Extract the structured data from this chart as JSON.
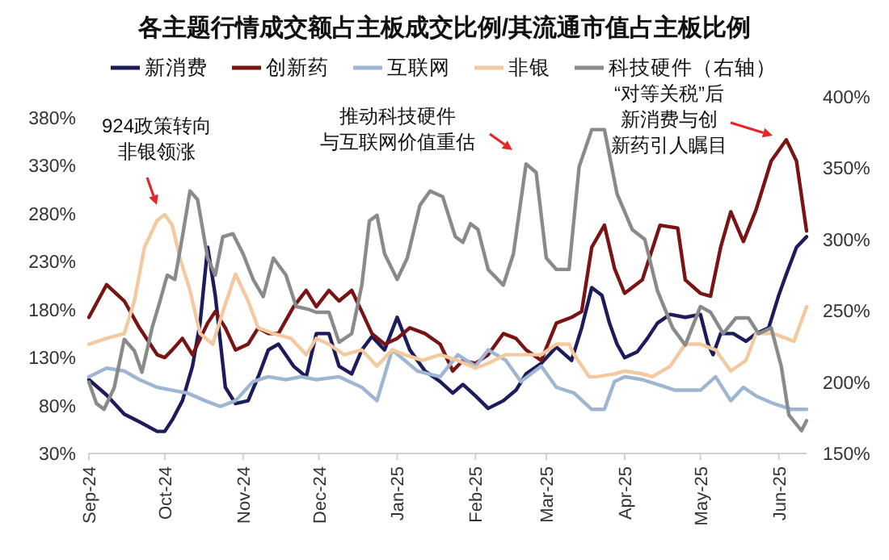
{
  "chart_data": {
    "type": "line",
    "title": "各主题行情成交额占主板成交比例/其流通市值占主板比例",
    "legend": "top",
    "xlim": [
      "2024-09-01",
      "2025-06-12"
    ],
    "xticks": [
      {
        "value": "2024-09-01",
        "label": "Sep-24"
      },
      {
        "value": "2024-10-01",
        "label": "Oct-24"
      },
      {
        "value": "2024-11-01",
        "label": "Nov-24"
      },
      {
        "value": "2024-12-01",
        "label": "Dec-24"
      },
      {
        "value": "2025-01-01",
        "label": "Jan-25"
      },
      {
        "value": "2025-02-01",
        "label": "Feb-25"
      },
      {
        "value": "2025-03-01",
        "label": "Mar-25"
      },
      {
        "value": "2025-04-01",
        "label": "Apr-25"
      },
      {
        "value": "2025-05-01",
        "label": "May-25"
      },
      {
        "value": "2025-06-01",
        "label": "Jun-25"
      }
    ],
    "ylim": [
      30,
      380
    ],
    "yticks": [
      {
        "value": 30,
        "label": "30%"
      },
      {
        "value": 80,
        "label": "80%"
      },
      {
        "value": 130,
        "label": "130%"
      },
      {
        "value": 180,
        "label": "180%"
      },
      {
        "value": 230,
        "label": "230%"
      },
      {
        "value": 280,
        "label": "280%"
      },
      {
        "value": 330,
        "label": "330%"
      },
      {
        "value": 380,
        "label": "380%"
      }
    ],
    "y2lim": [
      150,
      400
    ],
    "y2ticks": [
      {
        "value": 150,
        "label": "150%"
      },
      {
        "value": 200,
        "label": "200%"
      },
      {
        "value": 250,
        "label": "250%"
      },
      {
        "value": 300,
        "label": "300%"
      },
      {
        "value": 350,
        "label": "350%"
      },
      {
        "value": 400,
        "label": "400%"
      }
    ],
    "annotations": [
      "924政策转向非银领涨",
      "推动科技硬件与互联网价值重估",
      "“对等关税”后新消费与创新药引人瞩目"
    ],
    "series": [
      {
        "name": "新消费",
        "color": "#1c1c5c",
        "x": [
          "2024-09-01",
          "2024-09-08",
          "2024-09-15",
          "2024-09-21",
          "2024-09-28",
          "2024-10-01",
          "2024-10-04",
          "2024-10-08",
          "2024-10-12",
          "2024-10-15",
          "2024-10-18",
          "2024-10-21",
          "2024-10-25",
          "2024-10-29",
          "2024-11-03",
          "2024-11-07",
          "2024-11-11",
          "2024-11-15",
          "2024-11-21",
          "2024-11-26",
          "2024-11-30",
          "2024-12-05",
          "2024-12-09",
          "2024-12-14",
          "2024-12-18",
          "2024-12-22",
          "2024-12-27",
          "2025-01-01",
          "2025-01-06",
          "2025-01-12",
          "2025-01-18",
          "2025-01-23",
          "2025-01-27",
          "2025-02-01",
          "2025-02-06",
          "2025-02-12",
          "2025-02-17",
          "2025-02-21",
          "2025-02-27",
          "2025-03-05",
          "2025-03-11",
          "2025-03-15",
          "2025-03-19",
          "2025-03-23",
          "2025-03-26",
          "2025-03-29",
          "2025-04-01",
          "2025-04-06",
          "2025-04-10",
          "2025-04-14",
          "2025-04-19",
          "2025-04-25",
          "2025-05-01",
          "2025-05-04",
          "2025-05-06",
          "2025-05-09",
          "2025-05-14",
          "2025-05-19",
          "2025-05-23",
          "2025-05-28",
          "2025-06-01",
          "2025-06-04",
          "2025-06-08",
          "2025-06-12"
        ],
        "values": [
          107,
          91,
          71,
          63,
          53,
          53,
          65,
          85,
          121,
          166,
          245,
          195,
          99,
          82,
          85,
          110,
          138,
          144,
          121,
          110,
          155,
          155,
          121,
          113,
          138,
          152,
          138,
          172,
          138,
          116,
          105,
          93,
          102,
          90,
          77,
          85,
          96,
          113,
          124,
          141,
          127,
          161,
          203,
          195,
          166,
          144,
          130,
          136,
          150,
          166,
          175,
          172,
          175,
          144,
          133,
          155,
          155,
          147,
          155,
          161,
          195,
          217,
          245,
          256
        ]
      },
      {
        "name": "创新药",
        "color": "#7a1414",
        "x": [
          "2024-09-01",
          "2024-09-08",
          "2024-09-15",
          "2024-09-21",
          "2024-09-28",
          "2024-10-01",
          "2024-10-04",
          "2024-10-08",
          "2024-10-12",
          "2024-10-18",
          "2024-10-21",
          "2024-10-25",
          "2024-10-29",
          "2024-11-03",
          "2024-11-07",
          "2024-11-11",
          "2024-11-15",
          "2024-11-21",
          "2024-11-26",
          "2024-11-30",
          "2024-12-05",
          "2024-12-09",
          "2024-12-14",
          "2024-12-18",
          "2024-12-22",
          "2024-12-27",
          "2025-01-01",
          "2025-01-06",
          "2025-01-12",
          "2025-01-18",
          "2025-01-23",
          "2025-01-27",
          "2025-02-01",
          "2025-02-06",
          "2025-02-12",
          "2025-02-17",
          "2025-02-21",
          "2025-02-27",
          "2025-03-05",
          "2025-03-11",
          "2025-03-15",
          "2025-03-19",
          "2025-03-24",
          "2025-03-28",
          "2025-04-01",
          "2025-04-08",
          "2025-04-15",
          "2025-04-22",
          "2025-04-25",
          "2025-05-01",
          "2025-05-05",
          "2025-05-09",
          "2025-05-13",
          "2025-05-18",
          "2025-05-23",
          "2025-05-29",
          "2025-06-04",
          "2025-06-08",
          "2025-06-12"
        ],
        "values": [
          172,
          206,
          189,
          161,
          133,
          130,
          138,
          150,
          133,
          166,
          178,
          161,
          138,
          144,
          161,
          155,
          155,
          183,
          200,
          183,
          200,
          189,
          200,
          178,
          155,
          144,
          150,
          161,
          155,
          144,
          116,
          127,
          124,
          133,
          155,
          150,
          138,
          127,
          166,
          172,
          178,
          245,
          268,
          223,
          197,
          211,
          268,
          265,
          211,
          197,
          194,
          245,
          282,
          251,
          284,
          335,
          357,
          335,
          262
        ]
      },
      {
        "name": "互联网",
        "color": "#9fb6d2",
        "x": [
          "2024-09-01",
          "2024-09-08",
          "2024-09-15",
          "2024-09-21",
          "2024-09-28",
          "2024-10-04",
          "2024-10-10",
          "2024-10-17",
          "2024-10-23",
          "2024-10-29",
          "2024-11-05",
          "2024-11-11",
          "2024-11-18",
          "2024-11-24",
          "2024-11-30",
          "2024-12-09",
          "2024-12-18",
          "2024-12-24",
          "2024-12-30",
          "2025-01-09",
          "2025-01-18",
          "2025-01-25",
          "2025-02-01",
          "2025-02-06",
          "2025-02-13",
          "2025-02-19",
          "2025-02-27",
          "2025-03-05",
          "2025-03-12",
          "2025-03-19",
          "2025-03-24",
          "2025-03-28",
          "2025-04-01",
          "2025-04-08",
          "2025-04-14",
          "2025-04-21",
          "2025-04-27",
          "2025-05-01",
          "2025-05-07",
          "2025-05-13",
          "2025-05-18",
          "2025-05-23",
          "2025-05-30",
          "2025-06-06",
          "2025-06-12"
        ],
        "values": [
          110,
          119,
          116,
          107,
          99,
          96,
          93,
          85,
          79,
          85,
          105,
          110,
          107,
          110,
          107,
          110,
          99,
          85,
          138,
          116,
          110,
          133,
          121,
          138,
          127,
          105,
          121,
          99,
          93,
          76,
          76,
          105,
          110,
          107,
          102,
          96,
          96,
          96,
          110,
          85,
          99,
          90,
          82,
          76,
          76
        ]
      },
      {
        "name": "非银",
        "color": "#f3c9a0",
        "x": [
          "2024-09-01",
          "2024-09-08",
          "2024-09-15",
          "2024-09-19",
          "2024-09-23",
          "2024-09-28",
          "2024-10-01",
          "2024-10-04",
          "2024-10-07",
          "2024-10-11",
          "2024-10-15",
          "2024-10-20",
          "2024-10-24",
          "2024-10-29",
          "2024-11-03",
          "2024-11-07",
          "2024-11-13",
          "2024-11-20",
          "2024-11-26",
          "2024-11-30",
          "2024-12-05",
          "2024-12-11",
          "2024-12-18",
          "2024-12-24",
          "2024-12-30",
          "2025-01-04",
          "2025-01-11",
          "2025-01-18",
          "2025-01-25",
          "2025-02-01",
          "2025-02-06",
          "2025-02-13",
          "2025-02-19",
          "2025-02-27",
          "2025-03-05",
          "2025-03-10",
          "2025-03-12",
          "2025-03-18",
          "2025-03-21",
          "2025-03-28",
          "2025-04-01",
          "2025-04-08",
          "2025-04-12",
          "2025-04-19",
          "2025-04-25",
          "2025-05-01",
          "2025-05-07",
          "2025-05-13",
          "2025-05-19",
          "2025-05-23",
          "2025-05-30",
          "2025-06-07",
          "2025-06-12"
        ],
        "values": [
          144,
          150,
          155,
          189,
          245,
          273,
          279,
          268,
          234,
          200,
          155,
          144,
          178,
          217,
          189,
          161,
          155,
          150,
          133,
          150,
          144,
          133,
          138,
          121,
          138,
          133,
          127,
          133,
          127,
          119,
          124,
          133,
          133,
          133,
          144,
          144,
          133,
          110,
          110,
          113,
          116,
          113,
          110,
          121,
          144,
          144,
          138,
          116,
          127,
          155,
          155,
          147,
          183
        ]
      },
      {
        "name": "科技硬件（右轴）",
        "color": "#8a8a8a",
        "axis": "y2",
        "x": [
          "2024-09-01",
          "2024-09-04",
          "2024-09-07",
          "2024-09-11",
          "2024-09-15",
          "2024-09-19",
          "2024-09-22",
          "2024-09-26",
          "2024-09-29",
          "2024-10-02",
          "2024-10-05",
          "2024-10-08",
          "2024-10-11",
          "2024-10-14",
          "2024-10-18",
          "2024-10-21",
          "2024-10-24",
          "2024-10-28",
          "2024-11-01",
          "2024-11-05",
          "2024-11-09",
          "2024-11-13",
          "2024-11-18",
          "2024-11-22",
          "2024-11-27",
          "2024-11-30",
          "2024-12-05",
          "2024-12-09",
          "2024-12-14",
          "2024-12-18",
          "2024-12-21",
          "2024-12-24",
          "2024-12-27",
          "2025-01-01",
          "2025-01-05",
          "2025-01-10",
          "2025-01-14",
          "2025-01-19",
          "2025-01-24",
          "2025-01-27",
          "2025-01-30",
          "2025-02-02",
          "2025-02-06",
          "2025-02-12",
          "2025-02-16",
          "2025-02-21",
          "2025-02-25",
          "2025-03-01",
          "2025-03-05",
          "2025-03-10",
          "2025-03-14",
          "2025-03-19",
          "2025-03-24",
          "2025-03-29",
          "2025-04-04",
          "2025-04-09",
          "2025-04-14",
          "2025-04-20",
          "2025-04-25",
          "2025-05-01",
          "2025-05-05",
          "2025-05-10",
          "2025-05-15",
          "2025-05-20",
          "2025-05-24",
          "2025-05-29",
          "2025-06-02",
          "2025-06-05",
          "2025-06-10",
          "2025-06-12"
        ],
        "values": [
          200,
          185,
          181,
          196,
          230,
          222,
          207,
          238,
          256,
          275,
          272,
          302,
          334,
          328,
          287,
          275,
          302,
          304,
          290,
          272,
          260,
          287,
          275,
          253,
          251,
          249,
          249,
          228,
          234,
          268,
          313,
          317,
          290,
          272,
          287,
          324,
          334,
          330,
          302,
          298,
          311,
          307,
          279,
          268,
          290,
          353,
          347,
          287,
          279,
          279,
          351,
          377,
          377,
          332,
          307,
          300,
          264,
          238,
          226,
          253,
          249,
          234,
          245,
          245,
          234,
          238,
          211,
          177,
          166,
          173
        ]
      }
    ]
  }
}
